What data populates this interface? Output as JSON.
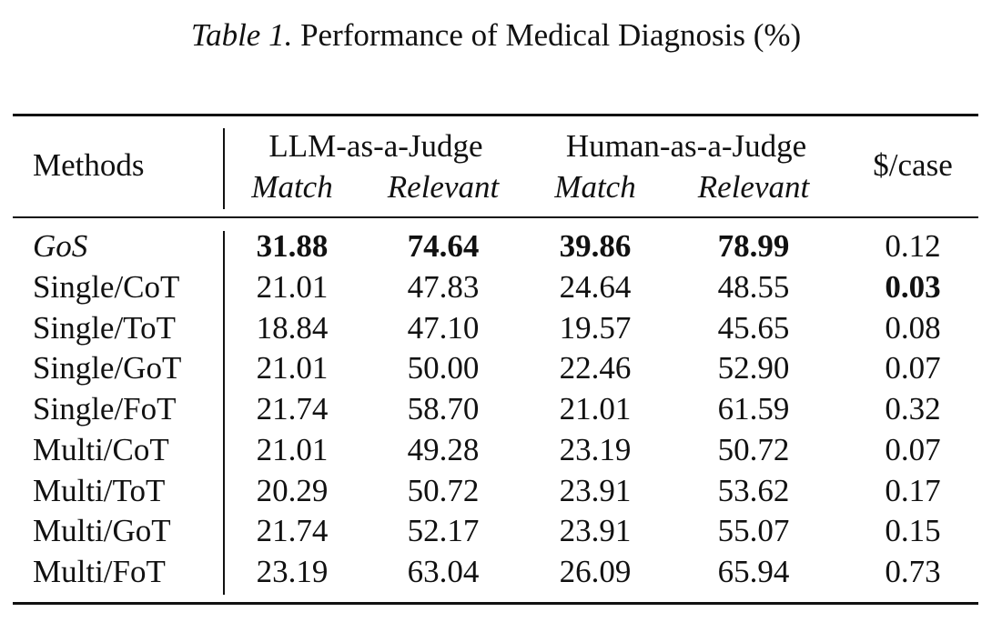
{
  "caption": {
    "label": "Table 1.",
    "text": "Performance of Medical Diagnosis (%)"
  },
  "header": {
    "methods": "Methods",
    "llm_judge": "LLM-as-a-Judge",
    "human_judge": "Human-as-a-Judge",
    "cost": "$/case",
    "llm_match": "Match",
    "llm_relevant": "Relevant",
    "human_match": "Match",
    "human_relevant": "Relevant"
  },
  "rows": [
    {
      "method": "GoS",
      "llm_match": "31.88",
      "llm_relevant": "74.64",
      "human_match": "39.86",
      "human_relevant": "78.99",
      "cost": "0.12"
    },
    {
      "method": "Single/CoT",
      "llm_match": "21.01",
      "llm_relevant": "47.83",
      "human_match": "24.64",
      "human_relevant": "48.55",
      "cost": "0.03"
    },
    {
      "method": "Single/ToT",
      "llm_match": "18.84",
      "llm_relevant": "47.10",
      "human_match": "19.57",
      "human_relevant": "45.65",
      "cost": "0.08"
    },
    {
      "method": "Single/GoT",
      "llm_match": "21.01",
      "llm_relevant": "50.00",
      "human_match": "22.46",
      "human_relevant": "52.90",
      "cost": "0.07"
    },
    {
      "method": "Single/FoT",
      "llm_match": "21.74",
      "llm_relevant": "58.70",
      "human_match": "21.01",
      "human_relevant": "61.59",
      "cost": "0.32"
    },
    {
      "method": "Multi/CoT",
      "llm_match": "21.01",
      "llm_relevant": "49.28",
      "human_match": "23.19",
      "human_relevant": "50.72",
      "cost": "0.07"
    },
    {
      "method": "Multi/ToT",
      "llm_match": "20.29",
      "llm_relevant": "50.72",
      "human_match": "23.91",
      "human_relevant": "53.62",
      "cost": "0.17"
    },
    {
      "method": "Multi/GoT",
      "llm_match": "21.74",
      "llm_relevant": "52.17",
      "human_match": "23.91",
      "human_relevant": "55.07",
      "cost": "0.15"
    },
    {
      "method": "Multi/FoT",
      "llm_match": "23.19",
      "llm_relevant": "63.04",
      "human_match": "26.09",
      "human_relevant": "65.94",
      "cost": "0.73"
    }
  ]
}
